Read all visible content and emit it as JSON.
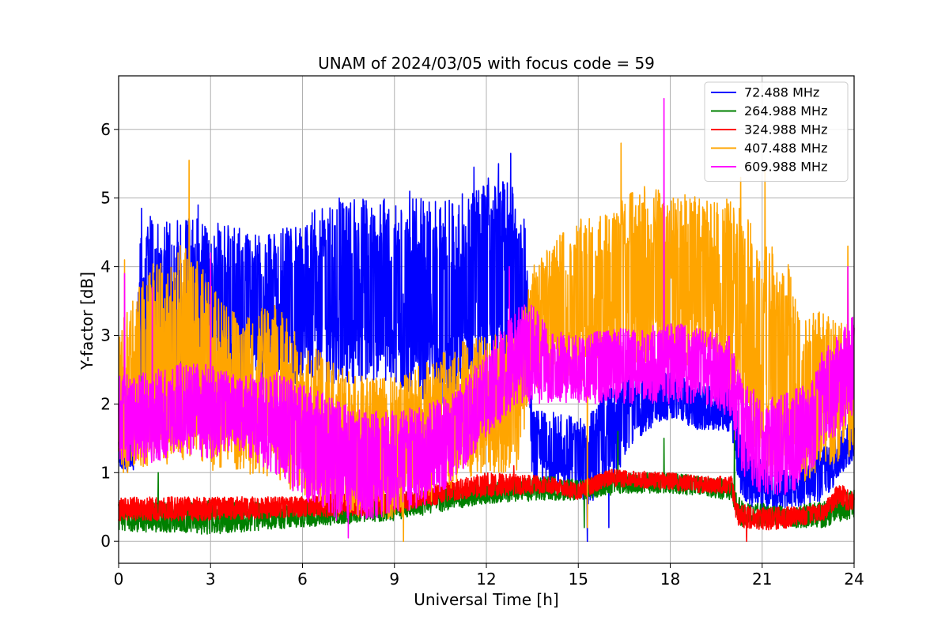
{
  "chart_data": {
    "type": "line",
    "title": "UNAM of 2024/03/05 with focus code = 59",
    "xlabel": "Universal Time [h]",
    "ylabel": "Y-factor [dB]",
    "xlim": [
      0,
      24
    ],
    "ylim": [
      -0.32,
      6.78
    ],
    "x_ticks": [
      0,
      3,
      6,
      9,
      12,
      15,
      18,
      21,
      24
    ],
    "x_tick_labels": [
      "0",
      "3",
      "6",
      "9",
      "12",
      "15",
      "18",
      "21",
      "24"
    ],
    "y_ticks": [
      0,
      1,
      2,
      3,
      4,
      5,
      6
    ],
    "y_tick_labels": [
      "0",
      "1",
      "2",
      "3",
      "4",
      "5",
      "6"
    ],
    "grid": true,
    "legend_position": "top-right",
    "series": [
      {
        "name": " 72.488 MHz",
        "color": "#0000ff",
        "envelope": {
          "x": [
            0,
            0.5,
            0.7,
            1.5,
            3,
            4.5,
            6,
            6.5,
            8,
            9,
            10,
            11,
            12,
            12.7,
            13.3,
            13.5,
            14,
            15,
            15.3,
            16,
            17,
            18,
            19,
            20,
            20.3,
            21,
            22,
            22.5,
            23,
            24
          ],
          "lo": [
            1.0,
            1.0,
            2.0,
            2.0,
            2.2,
            2.2,
            2.3,
            2.3,
            2.3,
            2.2,
            2.0,
            1.9,
            2.2,
            2.4,
            2.2,
            0.9,
            0.8,
            0.7,
            0.5,
            0.8,
            1.5,
            1.8,
            1.6,
            1.6,
            0.6,
            0.4,
            0.5,
            0.5,
            0.6,
            1.2
          ],
          "hi": [
            1.5,
            1.5,
            4.8,
            4.7,
            4.7,
            4.5,
            4.6,
            4.9,
            5.0,
            5.0,
            5.0,
            5.0,
            5.3,
            5.4,
            4.6,
            1.9,
            1.9,
            1.8,
            1.8,
            2.3,
            2.5,
            2.5,
            2.3,
            2.3,
            1.6,
            1.2,
            1.2,
            1.2,
            1.4,
            1.8
          ]
        },
        "spikes": [
          [
            0.75,
            4.85
          ],
          [
            2.6,
            4.9
          ],
          [
            7.2,
            5.0
          ],
          [
            9.5,
            5.1
          ],
          [
            11.6,
            5.45
          ],
          [
            12.4,
            5.5
          ],
          [
            12.8,
            5.65
          ],
          [
            15.3,
            0.0
          ],
          [
            16,
            0.2
          ]
        ]
      },
      {
        "name": " 264.988 MHz",
        "color": "#008000",
        "envelope": {
          "x": [
            0,
            3,
            6,
            9,
            12,
            14,
            15,
            16.5,
            18,
            20,
            20.3,
            22,
            23,
            24
          ],
          "lo": [
            0.15,
            0.1,
            0.2,
            0.3,
            0.55,
            0.6,
            0.6,
            0.7,
            0.7,
            0.6,
            0.2,
            0.2,
            0.2,
            0.35
          ],
          "hi": [
            0.55,
            0.6,
            0.55,
            0.7,
            0.85,
            0.95,
            0.9,
            1.0,
            1.0,
            0.9,
            0.6,
            0.5,
            0.6,
            0.75
          ]
        },
        "spikes": [
          [
            1.3,
            1.0
          ],
          [
            16.3,
            1.6
          ],
          [
            17.8,
            1.5
          ],
          [
            20.1,
            1.6
          ],
          [
            15.2,
            0.2
          ]
        ]
      },
      {
        "name": " 324.988 MHz",
        "color": "#ff0000",
        "envelope": {
          "x": [
            0,
            3,
            6,
            7,
            9,
            11,
            12,
            14,
            15,
            16,
            18,
            19,
            20,
            20.2,
            21,
            22,
            23,
            23.5,
            24
          ],
          "lo": [
            0.3,
            0.3,
            0.35,
            0.35,
            0.4,
            0.6,
            0.65,
            0.7,
            0.6,
            0.8,
            0.75,
            0.7,
            0.7,
            0.2,
            0.15,
            0.2,
            0.3,
            0.5,
            0.4
          ],
          "hi": [
            0.65,
            0.65,
            0.65,
            0.7,
            0.7,
            0.9,
            1.0,
            0.95,
            0.85,
            1.05,
            1.0,
            0.95,
            0.95,
            0.55,
            0.5,
            0.5,
            0.55,
            0.85,
            0.7
          ]
        },
        "spikes": [
          [
            20.5,
            0.0
          ],
          [
            12.9,
            1.1
          ]
        ]
      },
      {
        "name": " 407.488 MHz",
        "color": "#ffa500",
        "envelope": {
          "x": [
            0,
            1,
            2,
            3,
            4,
            5,
            6,
            7,
            8,
            9,
            10,
            11,
            12,
            13,
            13.5,
            14,
            15,
            16,
            17,
            18,
            19,
            20,
            20.5,
            21,
            22,
            22.5,
            23,
            24
          ],
          "lo": [
            1.0,
            1.0,
            1.2,
            1.0,
            1.0,
            0.9,
            0.6,
            0.4,
            0.3,
            0.3,
            0.5,
            0.8,
            1.0,
            1.0,
            2.2,
            2.3,
            2.3,
            2.5,
            2.6,
            2.5,
            2.4,
            2.2,
            1.5,
            0.9,
            0.8,
            0.9,
            1.1,
            1.2
          ],
          "hi": [
            3.2,
            4.0,
            4.5,
            3.8,
            3.2,
            3.5,
            3.0,
            2.6,
            2.4,
            2.4,
            2.6,
            2.9,
            3.0,
            3.1,
            4.0,
            4.3,
            4.7,
            4.8,
            5.2,
            5.1,
            5.0,
            5.0,
            4.8,
            4.5,
            4.0,
            3.3,
            3.4,
            3.3
          ]
        },
        "spikes": [
          [
            2.3,
            5.55
          ],
          [
            16.4,
            5.8
          ],
          [
            0.2,
            4.1
          ],
          [
            21.1,
            5.4
          ],
          [
            20.3,
            5.3
          ],
          [
            15.3,
            0.2
          ],
          [
            9.3,
            0.0
          ],
          [
            23.8,
            4.3
          ]
        ]
      },
      {
        "name": " 609.988 MHz",
        "color": "#ff00ff",
        "envelope": {
          "x": [
            0,
            1,
            2,
            3,
            4,
            5,
            6,
            7,
            8,
            9,
            10,
            11,
            12,
            13,
            13.5,
            14,
            15,
            16,
            17,
            18,
            19,
            20,
            20.3,
            21,
            22,
            22.5,
            23,
            24
          ],
          "lo": [
            1.2,
            1.1,
            1.3,
            1.2,
            1.3,
            1.0,
            0.6,
            0.3,
            0.3,
            0.4,
            0.5,
            0.9,
            1.5,
            2.0,
            2.0,
            2.0,
            2.0,
            2.0,
            2.0,
            2.0,
            2.0,
            1.8,
            1.0,
            0.6,
            0.7,
            0.9,
            1.4,
            1.7
          ],
          "hi": [
            2.4,
            2.5,
            2.6,
            2.6,
            2.4,
            2.5,
            2.3,
            2.1,
            1.9,
            1.9,
            2.0,
            2.2,
            2.8,
            3.4,
            3.5,
            3.1,
            3.0,
            3.1,
            3.1,
            3.2,
            3.1,
            3.0,
            2.4,
            2.1,
            2.2,
            2.3,
            2.8,
            3.3
          ]
        },
        "spikes": [
          [
            17.8,
            6.45
          ],
          [
            12.75,
            4.0
          ],
          [
            0.2,
            3.9
          ],
          [
            3.0,
            4.2
          ],
          [
            7.5,
            0.05
          ],
          [
            23.8,
            4.0
          ],
          [
            1.1,
            3.7
          ]
        ]
      }
    ]
  }
}
